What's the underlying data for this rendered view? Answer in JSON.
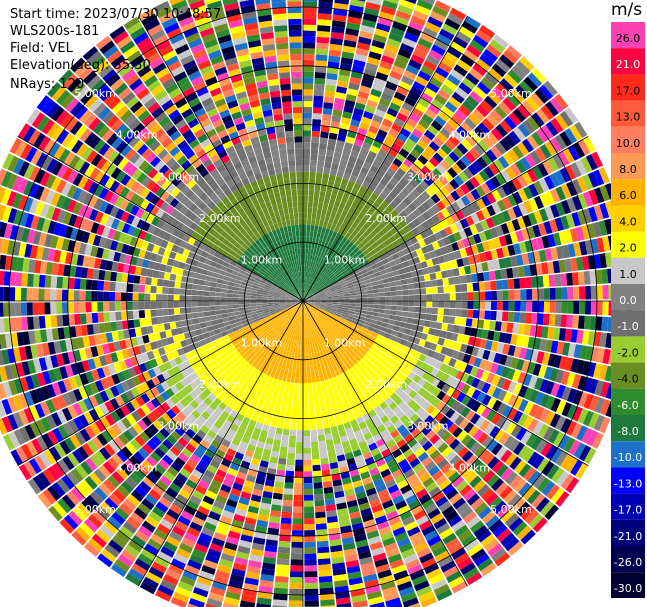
{
  "info": {
    "start_time": "Start time: 2023/07/30 10:48:57",
    "instrument": "WLS200s-181",
    "field": "Field: VEL",
    "elevation": "Elevation(deg): 35.30",
    "nrays": "NRays: 120"
  },
  "colorbar": {
    "unit": "m/s",
    "bins": [
      {
        "label": "26.0",
        "color": "#ff3fb4"
      },
      {
        "label": "21.0",
        "color": "#ff0040"
      },
      {
        "label": "17.0",
        "color": "#ff2a1a"
      },
      {
        "label": "13.0",
        "color": "#ff5a3a"
      },
      {
        "label": "10.0",
        "color": "#ff7f60"
      },
      {
        "label": "8.0",
        "color": "#ff9a55"
      },
      {
        "label": "6.0",
        "color": "#ffb300"
      },
      {
        "label": "4.0",
        "color": "#ffd000"
      },
      {
        "label": "2.0",
        "color": "#ffff00"
      },
      {
        "label": "1.0",
        "color": "#c8c8c8"
      },
      {
        "label": "0.0",
        "color": "#808080"
      },
      {
        "label": "-1.0",
        "color": "#707070"
      },
      {
        "label": "-2.0",
        "color": "#9acd32"
      },
      {
        "label": "-4.0",
        "color": "#6b8e23"
      },
      {
        "label": "-6.0",
        "color": "#2e8b2e"
      },
      {
        "label": "-8.0",
        "color": "#1e7a3c"
      },
      {
        "label": "-10.0",
        "color": "#1e6fc8"
      },
      {
        "label": "-13.0",
        "color": "#0000ff"
      },
      {
        "label": "-17.0",
        "color": "#0000b4"
      },
      {
        "label": "-21.0",
        "color": "#00007a"
      },
      {
        "label": "-26.0",
        "color": "#000050"
      },
      {
        "label": "-30.0",
        "color": "#000030"
      }
    ]
  },
  "chart_data": {
    "type": "heatmap",
    "subtype": "ppi-polar",
    "field": "VEL",
    "unit": "m/s",
    "rays": 120,
    "range_rings_km": [
      1.0,
      2.0,
      3.0,
      4.0,
      5.0
    ],
    "ring_labels": [
      "1.00km",
      "2.00km",
      "3.00km",
      "4.00km",
      "5.00km"
    ],
    "max_range_km": 5.6,
    "color_levels": [
      -30.0,
      -26.0,
      -21.0,
      -17.0,
      -13.0,
      -10.0,
      -8.0,
      -6.0,
      -4.0,
      -2.0,
      -1.0,
      0.0,
      1.0,
      2.0,
      4.0,
      6.0,
      8.0,
      10.0,
      13.0,
      17.0,
      21.0,
      26.0
    ],
    "regions": [
      {
        "sector": "north",
        "range_km": [
          0.0,
          1.4
        ],
        "velocity_ms": -6.0
      },
      {
        "sector": "north",
        "range_km": [
          1.4,
          2.2
        ],
        "velocity_ms": -2.0
      },
      {
        "sector": "south",
        "range_km": [
          0.0,
          1.5
        ],
        "velocity_ms": 6.0
      },
      {
        "sector": "south",
        "range_km": [
          1.5,
          2.3
        ],
        "velocity_ms": 2.0
      },
      {
        "sector": "east-west",
        "range_km": [
          0.0,
          2.6
        ],
        "velocity_ms": 0.0
      },
      {
        "sector": "all",
        "range_km": [
          2.6,
          5.6
        ],
        "velocity_ms": "noise"
      }
    ]
  }
}
